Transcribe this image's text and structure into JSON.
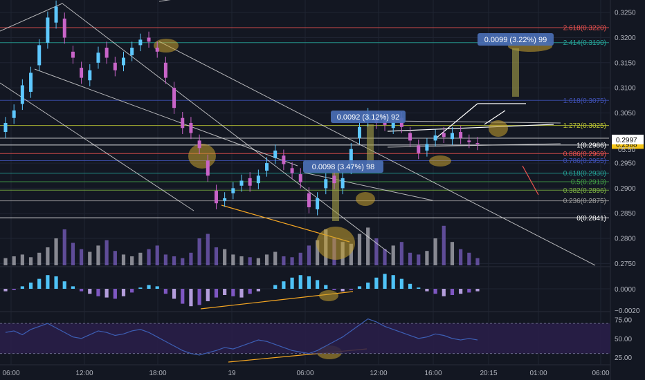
{
  "chart_data": [
    {
      "type": "candlestick",
      "title": "",
      "xlabel": "",
      "ylabel": "",
      "x_ticks": [
        "06:00",
        "12:00",
        "18:00",
        "19",
        "06:00",
        "12:00",
        "16:00",
        "20:15",
        "01:00",
        "06:00"
      ],
      "ylim": [
        0.2745,
        0.3275
      ],
      "y_ticks": [
        "0.3250",
        "0.3200",
        "0.3150",
        "0.3100",
        "0.3050",
        "0.3000",
        "0.2950",
        "0.2900",
        "0.2850",
        "0.2800",
        "0.2750"
      ],
      "last_price": "0.2988",
      "last_price_prev": "0.2997",
      "countdown": "05:50",
      "close_path": [
        [
          0.3012,
          0.303
        ],
        [
          0.304,
          0.3055
        ],
        [
          0.3068,
          0.3105
        ],
        [
          0.3092,
          0.313
        ],
        [
          0.3145,
          0.3185
        ],
        [
          0.319,
          0.324
        ],
        [
          0.323,
          0.3262
        ],
        [
          0.3238,
          0.32
        ],
        [
          0.3172,
          0.316
        ],
        [
          0.314,
          0.312
        ],
        [
          0.3115,
          0.3135
        ],
        [
          0.315,
          0.317
        ],
        [
          0.318,
          0.316
        ],
        [
          0.315,
          0.3135
        ],
        [
          0.3145,
          0.316
        ],
        [
          0.3165,
          0.318
        ],
        [
          0.3185,
          0.3196
        ],
        [
          0.32,
          0.3192
        ],
        [
          0.318,
          0.3172
        ],
        [
          0.315,
          0.312
        ],
        [
          0.31,
          0.306
        ],
        [
          0.304,
          0.302
        ],
        [
          0.303,
          0.301
        ],
        [
          0.2995,
          0.298
        ],
        [
          0.2955,
          0.2925
        ],
        [
          0.2895,
          0.287
        ],
        [
          0.2875,
          0.288
        ],
        [
          0.289,
          0.29
        ],
        [
          0.2905,
          0.2915
        ],
        [
          0.292,
          0.2905
        ],
        [
          0.291,
          0.2925
        ],
        [
          0.2935,
          0.295
        ],
        [
          0.296,
          0.2975
        ],
        [
          0.2965,
          0.2948
        ],
        [
          0.294,
          0.293
        ],
        [
          0.2928,
          0.2912
        ],
        [
          0.289,
          0.2862
        ],
        [
          0.2858,
          0.288
        ],
        [
          0.29,
          0.2918
        ],
        [
          0.2925,
          0.291
        ],
        [
          0.29,
          0.292
        ],
        [
          0.294,
          0.2978
        ],
        [
          0.3,
          0.3022
        ],
        [
          0.3035,
          0.3048
        ],
        [
          0.304,
          0.303
        ],
        [
          0.3036,
          0.3026
        ],
        [
          0.302,
          0.3032
        ],
        [
          0.304,
          0.3022
        ],
        [
          0.301,
          0.2995
        ],
        [
          0.2985,
          0.297
        ],
        [
          0.2975,
          0.2988
        ],
        [
          0.2995,
          0.3005
        ],
        [
          0.301,
          0.3002
        ],
        [
          0.2998,
          0.301
        ],
        [
          0.3012,
          0.3
        ],
        [
          0.2995,
          0.2992
        ],
        [
          0.299,
          0.2988
        ]
      ],
      "fib_levels": [
        {
          "label": "2.618(0.3220)",
          "value": 0.322,
          "color": "#ef5350"
        },
        {
          "label": "2.414(0.3190)",
          "value": 0.319,
          "color": "#26a69a"
        },
        {
          "label": "1.618(0.3075)",
          "value": 0.3075,
          "color": "#3f51b5"
        },
        {
          "label": "1.272(0.3025)",
          "value": 0.3025,
          "color": "#c0ca33"
        },
        {
          "label": "1(0.2986)",
          "value": 0.2986,
          "color": "#ffffff"
        },
        {
          "label": "0.886(0.2969)",
          "value": 0.2969,
          "color": "#ef5350"
        },
        {
          "label": "0.786(0.2955)",
          "value": 0.2955,
          "color": "#3f51b5"
        },
        {
          "label": "0.618(0.2930)",
          "value": 0.293,
          "color": "#26a69a"
        },
        {
          "label": "0.5(0.2913)",
          "value": 0.2913,
          "color": "#43a047"
        },
        {
          "label": "0.382(0.2896)",
          "value": 0.2896,
          "color": "#7cb342"
        },
        {
          "label": "0.236(0.2875)",
          "value": 0.2875,
          "color": "#9e9e9e"
        },
        {
          "label": "0(0.2841)",
          "value": 0.2841,
          "color": "#ffffff"
        }
      ],
      "callouts": [
        {
          "text": "0.0099 (3.22%) 99"
        },
        {
          "text": "0.0092 (3.12%) 92"
        },
        {
          "text": "0.0098 (3.47%) 98"
        }
      ]
    },
    {
      "type": "bar",
      "title": "",
      "y_ticks": [
        "0.0000",
        "−0.0020"
      ]
    },
    {
      "type": "line",
      "title": "",
      "y_ticks": [
        "75.00",
        "50.00",
        "25.00"
      ],
      "ylim": [
        15,
        82
      ],
      "bands": [
        70,
        30
      ],
      "values": [
        58,
        60,
        55,
        62,
        66,
        70,
        64,
        58,
        52,
        50,
        55,
        60,
        58,
        54,
        56,
        60,
        62,
        58,
        52,
        46,
        40,
        34,
        30,
        28,
        31,
        34,
        38,
        36,
        40,
        44,
        48,
        46,
        42,
        38,
        34,
        32,
        30,
        34,
        40,
        46,
        52,
        60,
        68,
        76,
        72,
        66,
        62,
        58,
        54,
        50,
        52,
        56,
        54,
        50,
        48,
        50,
        48
      ]
    }
  ],
  "colors": {
    "background": "#131722",
    "grid": "#1f2433",
    "candle_up": "#5ec8ff",
    "candle_down": "#c864c8",
    "price_badge": "#f5c518",
    "prev_badge": "#ffffff",
    "callout_bg": "#4a6fb5",
    "highlight": "#c8a22f",
    "arrow_orange": "#f5a623",
    "arrow_white": "#ffffff",
    "arrow_red": "#ef5350",
    "rsi_line": "#3d5fb5",
    "rsi_band": "#2a1f4a"
  }
}
